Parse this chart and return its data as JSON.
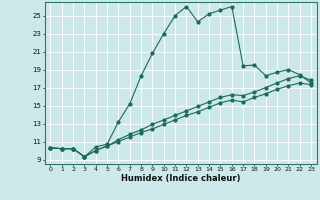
{
  "xlabel": "Humidex (Indice chaleur)",
  "bg_color": "#cce8e8",
  "line_color": "#1a6b5a",
  "grid_color": "#ffffff",
  "xlim": [
    -0.5,
    23.5
  ],
  "ylim": [
    8.5,
    26.5
  ],
  "xticks": [
    0,
    1,
    2,
    3,
    4,
    5,
    6,
    7,
    8,
    9,
    10,
    11,
    12,
    13,
    14,
    15,
    16,
    17,
    18,
    19,
    20,
    21,
    22,
    23
  ],
  "yticks": [
    9,
    11,
    13,
    15,
    17,
    19,
    21,
    23,
    25
  ],
  "line1_x": [
    0,
    1,
    2,
    3,
    4,
    5,
    6,
    7,
    8,
    9,
    10,
    11,
    12,
    13,
    14,
    15,
    16,
    17,
    18,
    19,
    20,
    21,
    22,
    23
  ],
  "line1_y": [
    10.3,
    10.2,
    10.2,
    9.3,
    10.4,
    10.7,
    13.2,
    15.2,
    18.3,
    20.8,
    23.0,
    25.0,
    26.0,
    24.3,
    25.2,
    25.6,
    26.0,
    19.4,
    19.5,
    18.3,
    18.7,
    19.0,
    18.4,
    17.5
  ],
  "line2_x": [
    0,
    1,
    2,
    3,
    4,
    5,
    6,
    7,
    8,
    9,
    10,
    11,
    12,
    13,
    14,
    15,
    16,
    17,
    18,
    19,
    20,
    21,
    22,
    23
  ],
  "line2_y": [
    10.3,
    10.2,
    10.2,
    9.3,
    10.0,
    10.5,
    11.2,
    11.8,
    12.3,
    12.9,
    13.4,
    13.9,
    14.4,
    14.9,
    15.4,
    15.9,
    16.2,
    16.1,
    16.5,
    17.0,
    17.5,
    18.0,
    18.3,
    17.8
  ],
  "line3_x": [
    0,
    1,
    2,
    3,
    4,
    5,
    6,
    7,
    8,
    9,
    10,
    11,
    12,
    13,
    14,
    15,
    16,
    17,
    18,
    19,
    20,
    21,
    22,
    23
  ],
  "line3_y": [
    10.3,
    10.2,
    10.2,
    9.3,
    10.0,
    10.5,
    11.0,
    11.5,
    12.0,
    12.4,
    12.9,
    13.4,
    13.9,
    14.3,
    14.8,
    15.3,
    15.6,
    15.4,
    15.9,
    16.3,
    16.8,
    17.2,
    17.5,
    17.3
  ]
}
